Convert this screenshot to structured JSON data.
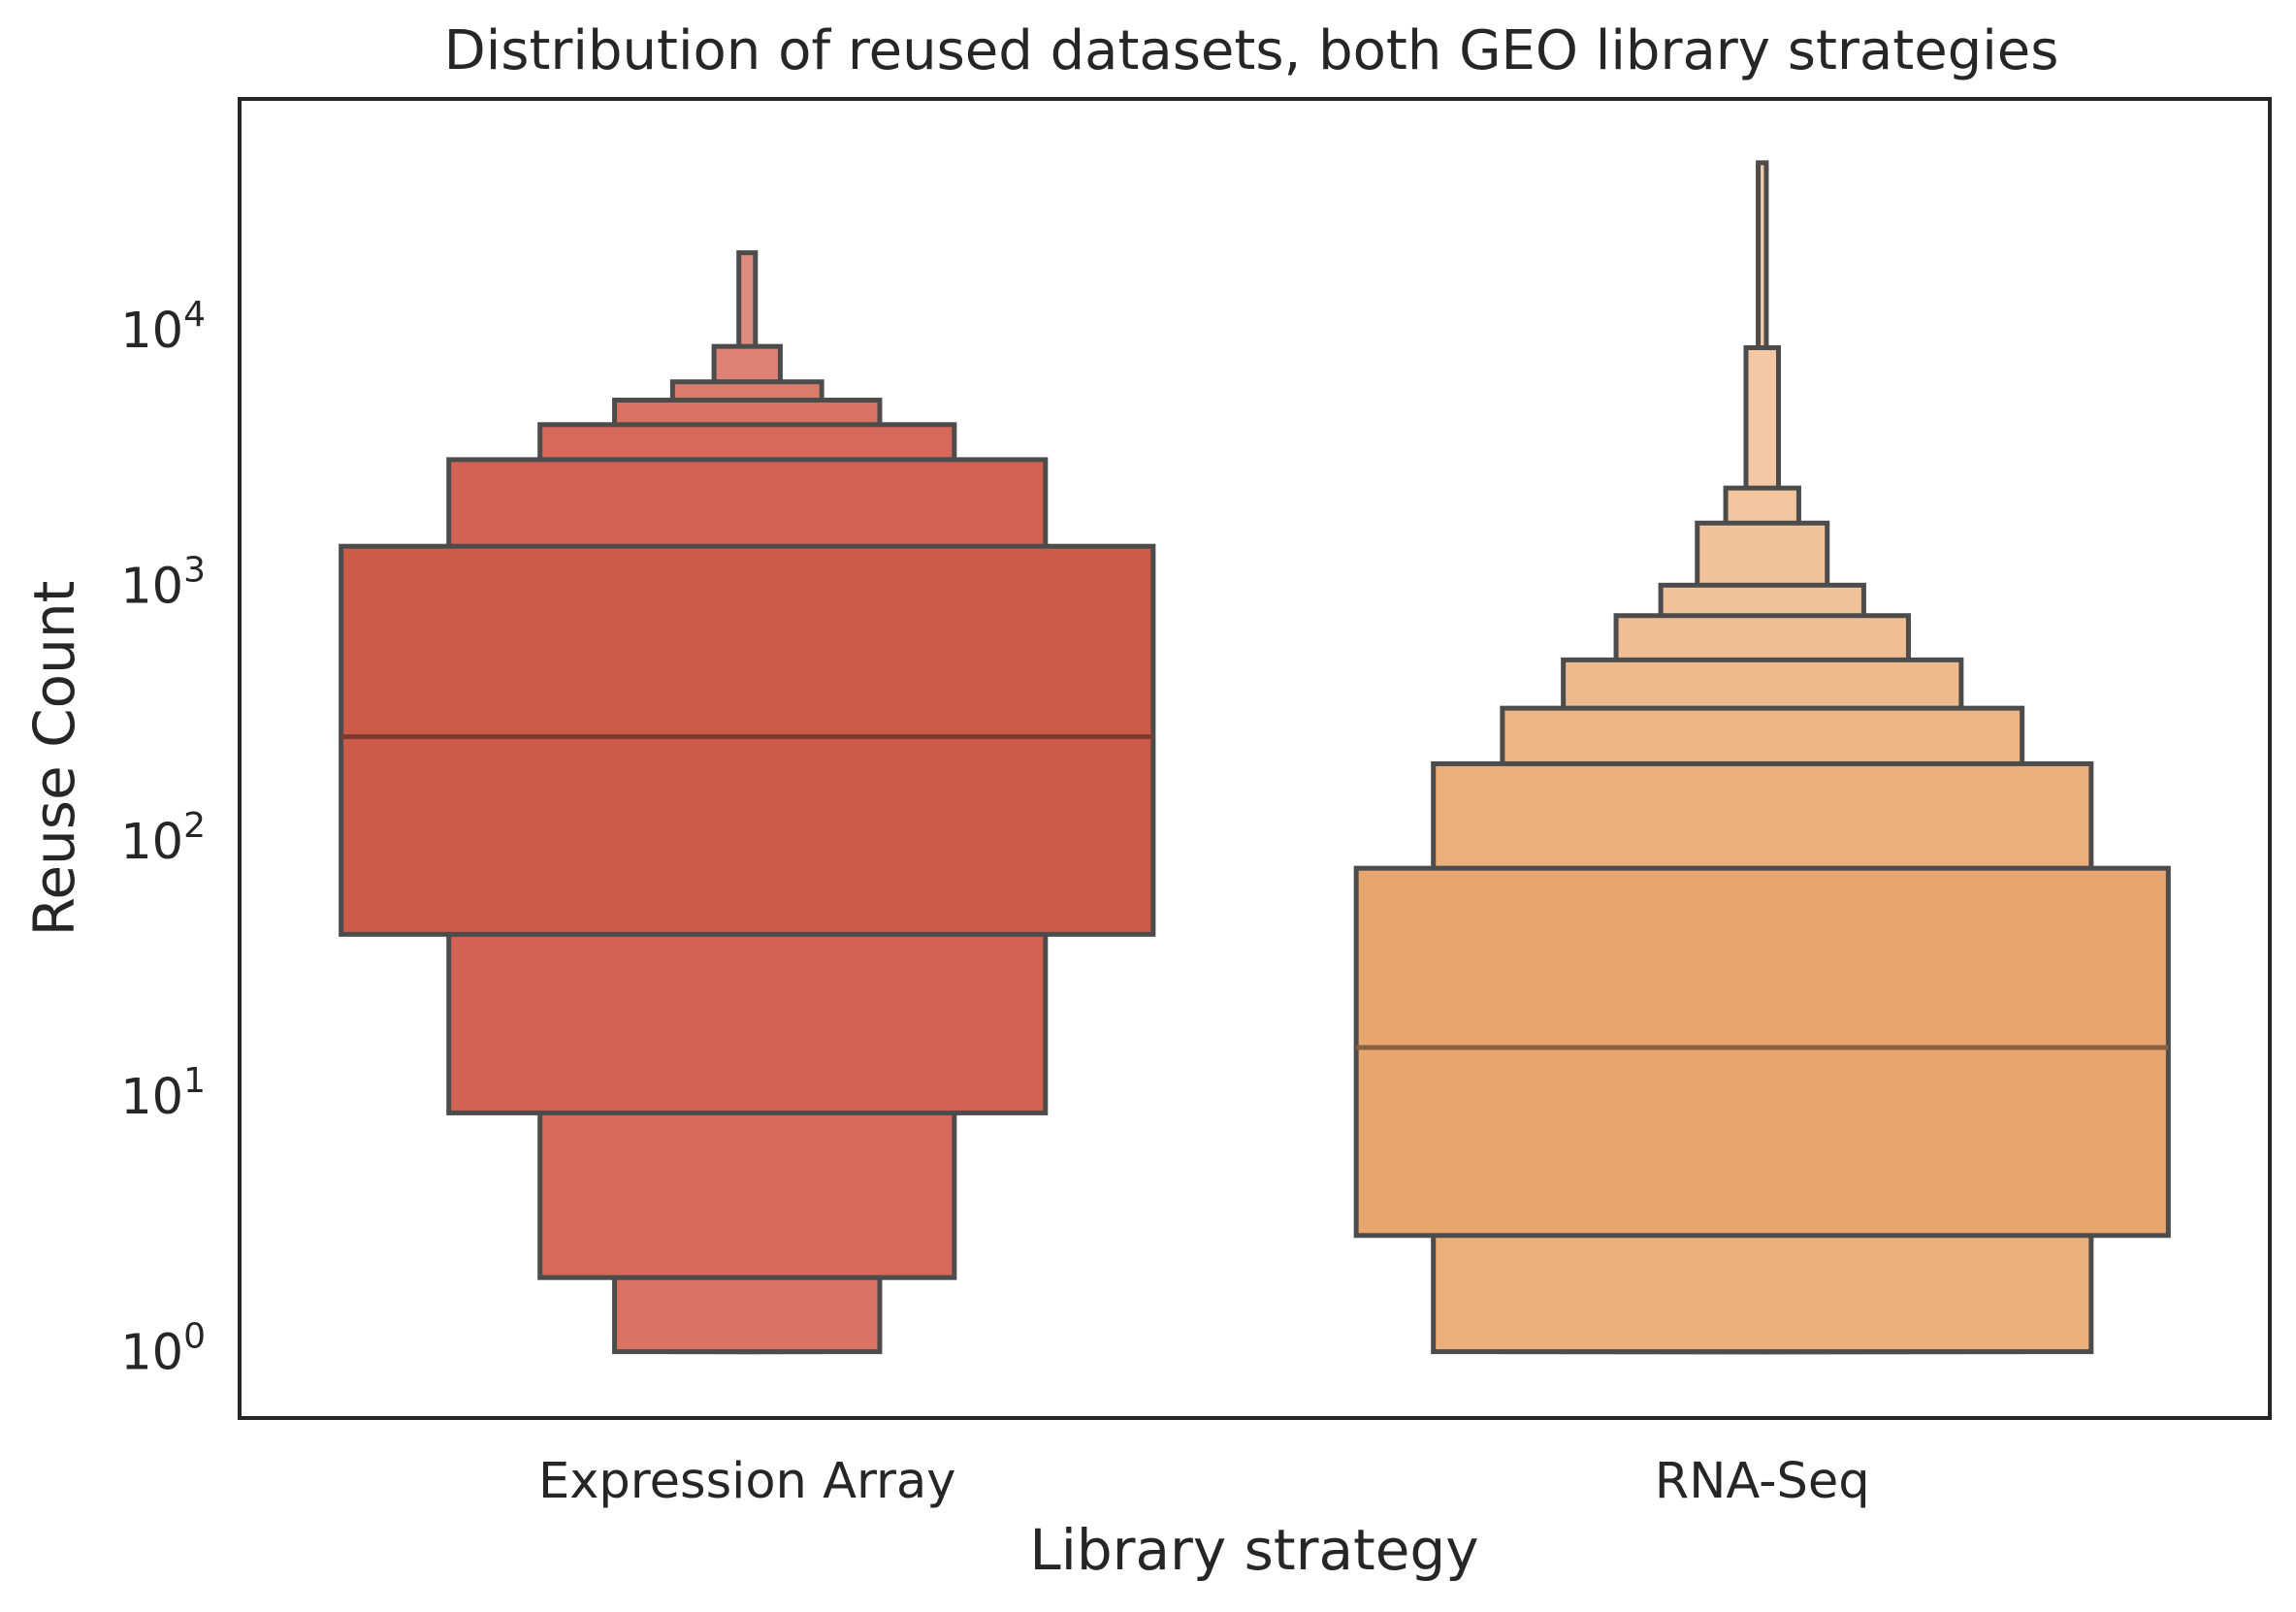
{
  "chart_data": {
    "type": "boxen",
    "title": "Distribution of reused datasets, both GEO library strategies",
    "xlabel": "Library strategy",
    "ylabel": "Reuse Count",
    "yscale": "log",
    "ylim": [
      0.55,
      80000
    ],
    "yticks": [
      {
        "value": 1,
        "base": "10",
        "exp": "0"
      },
      {
        "value": 10,
        "base": "10",
        "exp": "1"
      },
      {
        "value": 100,
        "base": "10",
        "exp": "2"
      },
      {
        "value": 1000,
        "base": "10",
        "exp": "3"
      },
      {
        "value": 10000,
        "base": "10",
        "exp": "4"
      }
    ],
    "grid": false,
    "categories": [
      "Expression Array",
      "RNA-Seq"
    ],
    "series": [
      {
        "category": "Expression Array",
        "color": "#cd5b4a",
        "median": 255,
        "levels": [
          {
            "low": 43,
            "high": 1420,
            "color": "#cd5b4a"
          },
          {
            "low": 8.6,
            "high": 3100,
            "color": "#d36252"
          },
          {
            "low": 1.95,
            "high": 4250,
            "color": "#d6695a"
          },
          {
            "low": 1.0,
            "high": 5300,
            "color": "#d97464"
          },
          {
            "high": 6250,
            "color": "#da7b6b"
          },
          {
            "high": 8600,
            "color": "#dc8375"
          },
          {
            "high": 20000,
            "color": "#de8c7e"
          }
        ]
      },
      {
        "category": "RNA-Seq",
        "color": "#e8a66f",
        "median": 15.5,
        "levels": [
          {
            "low": 2.85,
            "high": 78,
            "color": "#e8a66f"
          },
          {
            "low": 1.0,
            "high": 200,
            "color": "#ebaf7b"
          },
          {
            "high": 330,
            "color": "#edb584"
          },
          {
            "high": 510,
            "color": "#efbb8e"
          },
          {
            "high": 760,
            "color": "#f0be92"
          },
          {
            "high": 1000,
            "color": "#f1c197"
          },
          {
            "high": 1750,
            "color": "#f2c39b"
          },
          {
            "high": 2400,
            "color": "#f3c59f"
          },
          {
            "high": 8500,
            "color": "#f4c8a4"
          },
          {
            "high": 45000,
            "color": "#f5caa8"
          }
        ]
      }
    ]
  }
}
